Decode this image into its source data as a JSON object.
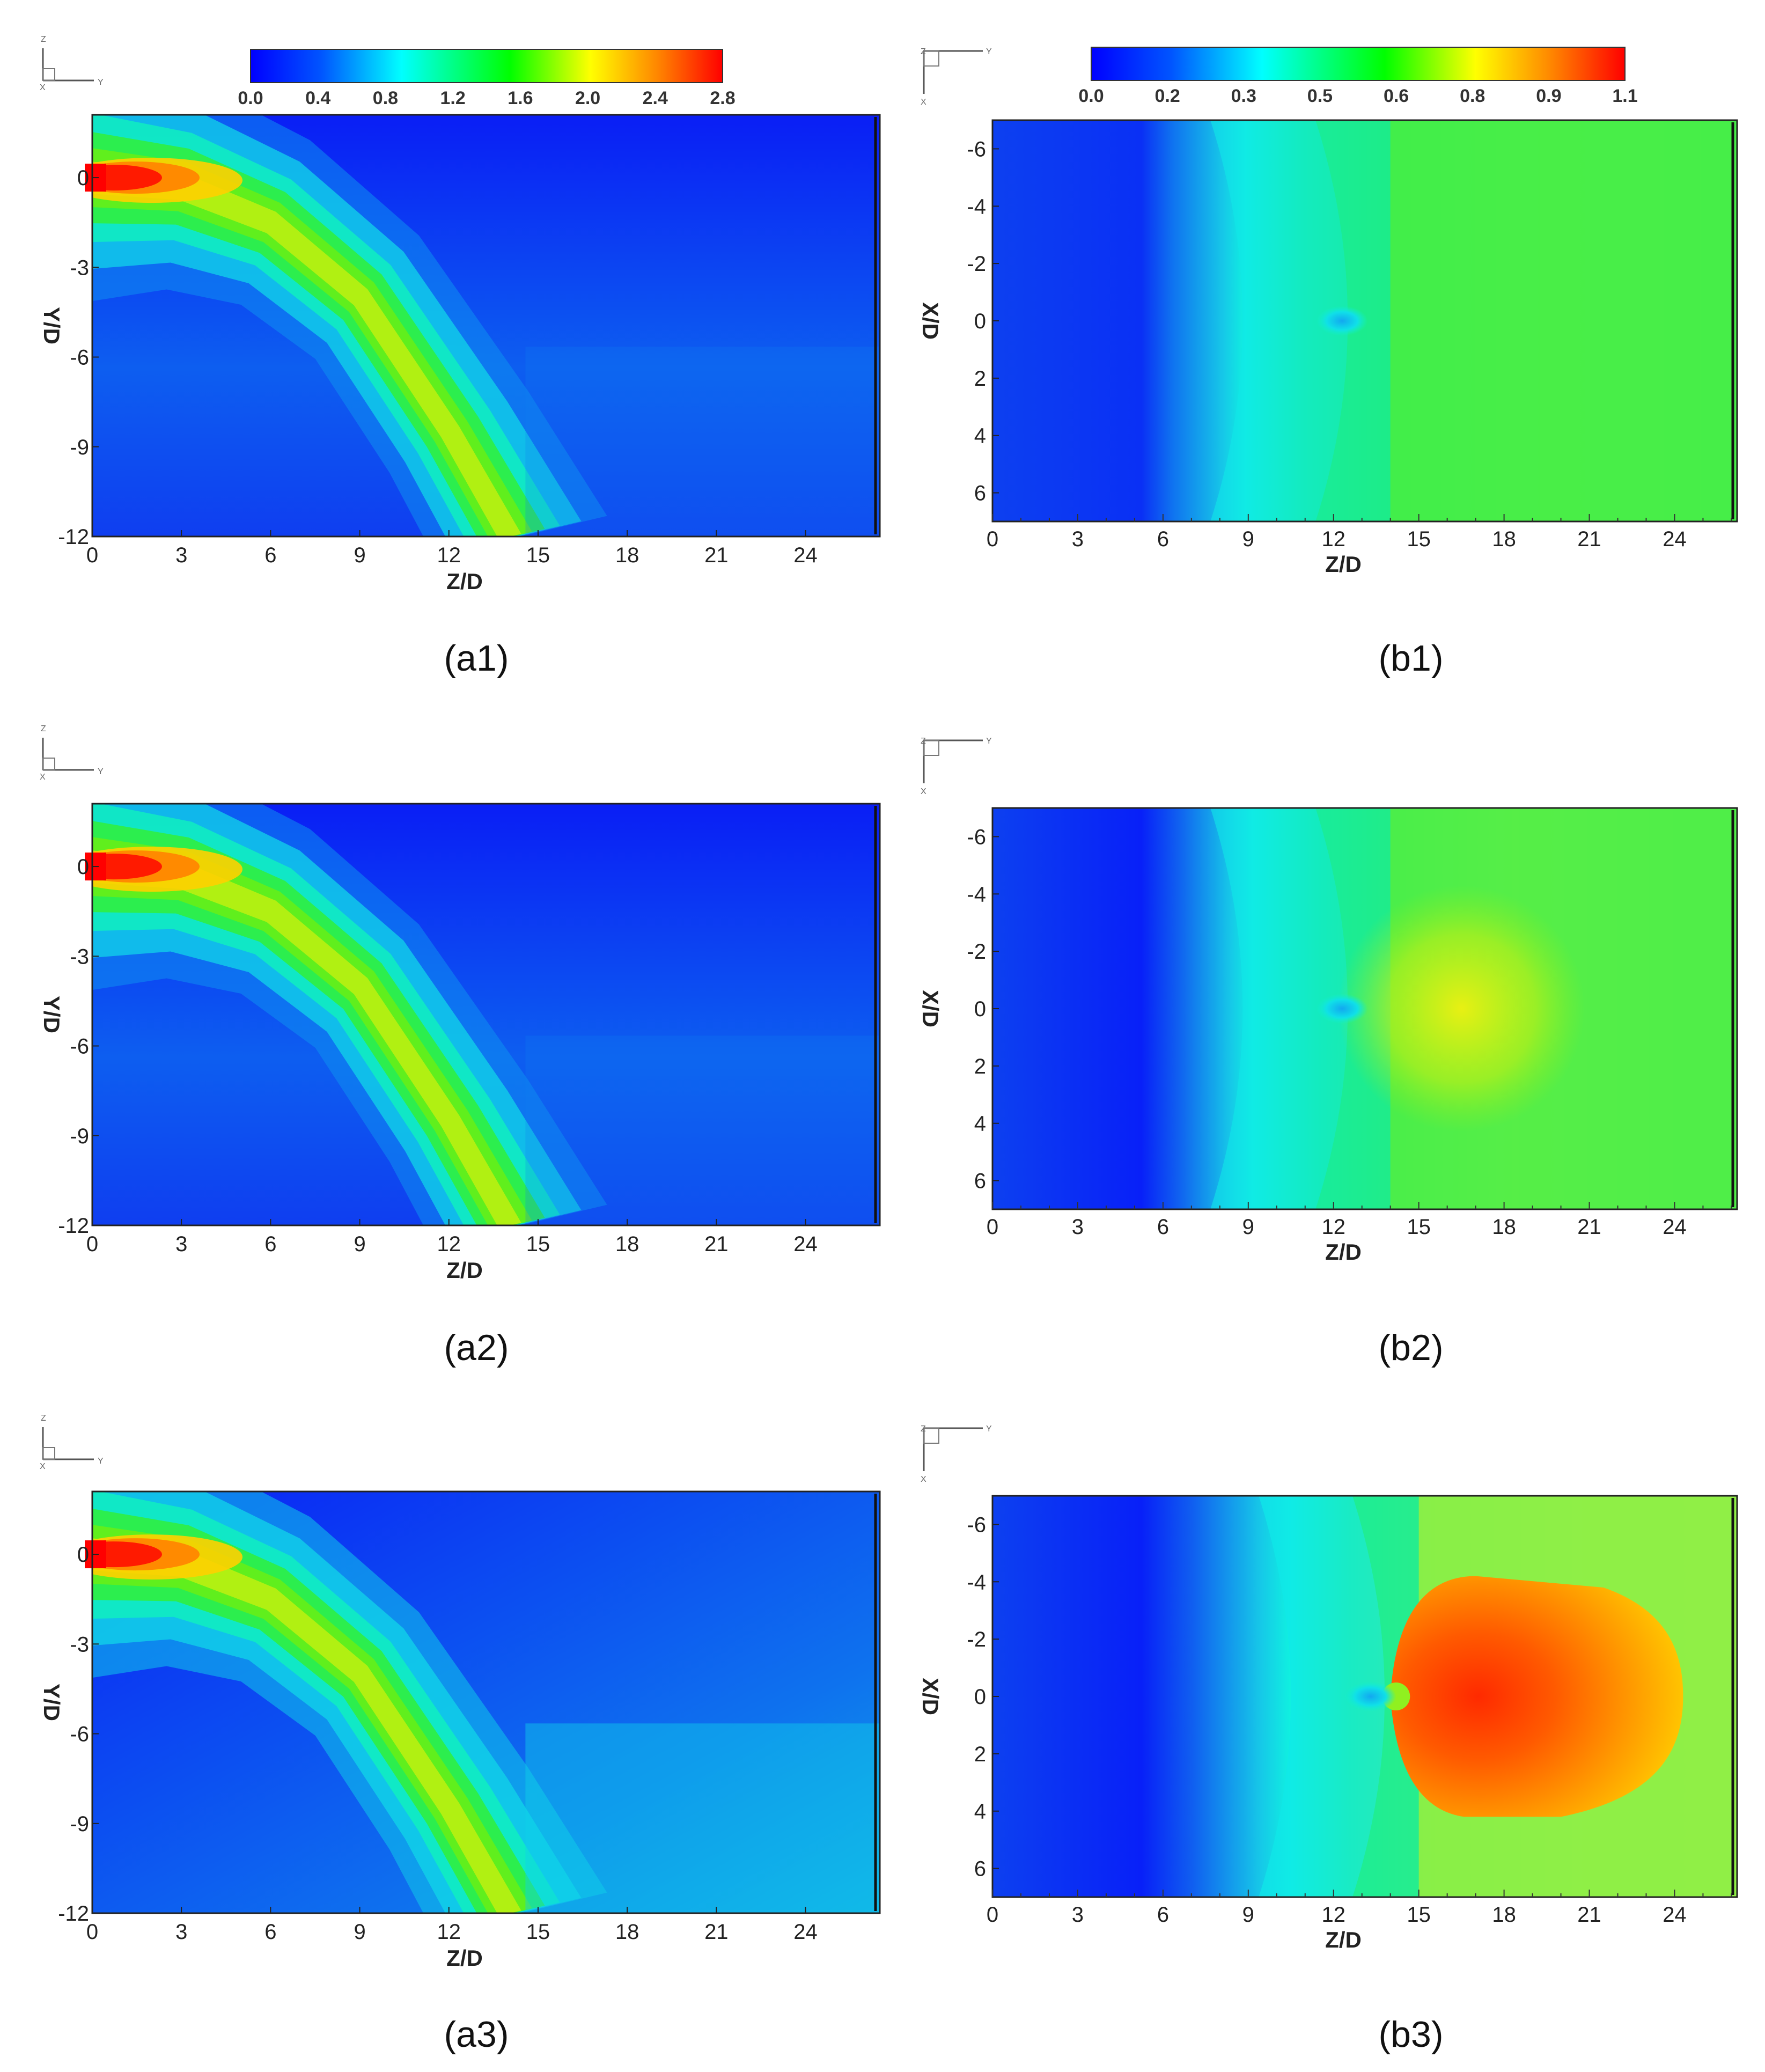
{
  "panels": [
    {
      "id": "a1",
      "caption": "(a1)",
      "type": "heatmap",
      "kind": "A",
      "variant": 1,
      "colorbar": {
        "ticks": [
          "0.0",
          "0.4",
          "0.8",
          "1.2",
          "1.6",
          "2.0",
          "2.4",
          "2.8"
        ],
        "range": [
          0.0,
          2.8
        ]
      },
      "xlabel": "Z/D",
      "ylabel": "Y/D",
      "xticks": [
        "0",
        "3",
        "6",
        "9",
        "12",
        "15",
        "18",
        "21",
        "24"
      ],
      "yticks": [
        "0",
        "-3",
        "-6",
        "-9",
        "-12"
      ],
      "xlim": [
        0,
        26.5
      ],
      "ylim": [
        -12,
        2.1
      ],
      "axis_triad": [
        "Z",
        "Y",
        "X"
      ]
    },
    {
      "id": "b1",
      "caption": "(b1)",
      "type": "heatmap",
      "kind": "B",
      "variant": 1,
      "colorbar": {
        "ticks": [
          "0.0",
          "0.2",
          "0.3",
          "0.5",
          "0.6",
          "0.8",
          "0.9",
          "1.1"
        ],
        "range": [
          0.0,
          1.1
        ]
      },
      "xlabel": "Z/D",
      "ylabel": "X/D",
      "xticks": [
        "0",
        "3",
        "6",
        "9",
        "12",
        "15",
        "18",
        "21",
        "24"
      ],
      "yticks": [
        "-6",
        "-4",
        "-2",
        "0",
        "2",
        "4",
        "6"
      ],
      "xlim": [
        0,
        26.2
      ],
      "ylim": [
        -7,
        7
      ],
      "axis_triad": [
        "Z",
        "Y",
        "X"
      ]
    },
    {
      "id": "a2",
      "caption": "(a2)",
      "type": "heatmap",
      "kind": "A",
      "variant": 2,
      "xlabel": "Z/D",
      "ylabel": "Y/D",
      "xticks": [
        "0",
        "3",
        "6",
        "9",
        "12",
        "15",
        "18",
        "21",
        "24"
      ],
      "yticks": [
        "0",
        "-3",
        "-6",
        "-9",
        "-12"
      ],
      "xlim": [
        0,
        26.5
      ],
      "ylim": [
        -12,
        2.1
      ],
      "axis_triad": [
        "Z",
        "Y",
        "X"
      ]
    },
    {
      "id": "b2",
      "caption": "(b2)",
      "type": "heatmap",
      "kind": "B",
      "variant": 2,
      "xlabel": "Z/D",
      "ylabel": "X/D",
      "xticks": [
        "0",
        "3",
        "6",
        "9",
        "12",
        "15",
        "18",
        "21",
        "24"
      ],
      "yticks": [
        "-6",
        "-4",
        "-2",
        "0",
        "2",
        "4",
        "6"
      ],
      "xlim": [
        0,
        26.2
      ],
      "ylim": [
        -7,
        7
      ],
      "axis_triad": [
        "Z",
        "Y",
        "X"
      ]
    },
    {
      "id": "a3",
      "caption": "(a3)",
      "type": "heatmap",
      "kind": "A",
      "variant": 3,
      "xlabel": "Z/D",
      "ylabel": "Y/D",
      "xticks": [
        "0",
        "3",
        "6",
        "9",
        "12",
        "15",
        "18",
        "21",
        "24"
      ],
      "yticks": [
        "0",
        "-3",
        "-6",
        "-9",
        "-12"
      ],
      "xlim": [
        0,
        26.5
      ],
      "ylim": [
        -12,
        2.1
      ],
      "axis_triad": [
        "Z",
        "Y",
        "X"
      ]
    },
    {
      "id": "b3",
      "caption": "(b3)",
      "type": "heatmap",
      "kind": "B",
      "variant": 3,
      "xlabel": "Z/D",
      "ylabel": "X/D",
      "xticks": [
        "0",
        "3",
        "6",
        "9",
        "12",
        "15",
        "18",
        "21",
        "24"
      ],
      "yticks": [
        "-6",
        "-4",
        "-2",
        "0",
        "2",
        "4",
        "6"
      ],
      "xlim": [
        0,
        26.2
      ],
      "ylim": [
        -7,
        7
      ],
      "axis_triad": [
        "Z",
        "Y",
        "X"
      ]
    }
  ],
  "chart_data": [
    {
      "type": "heatmap",
      "panel": "a1",
      "x_axis": "Z/D",
      "y_axis": "Y/D",
      "xlim": [
        0,
        26.5
      ],
      "ylim": [
        -12,
        2.1
      ],
      "colorscale": [
        "#0000ff",
        "#00ffff",
        "#00ff00",
        "#ffff00",
        "#ff0000"
      ],
      "color_range": [
        0.0,
        2.8
      ],
      "jet_centerline": [
        [
          0,
          0
        ],
        [
          3,
          -0.3
        ],
        [
          6,
          -1.5
        ],
        [
          9,
          -4
        ],
        [
          12,
          -8.5
        ],
        [
          14,
          -12
        ]
      ],
      "peak_value": 2.8
    },
    {
      "type": "heatmap",
      "panel": "b1",
      "x_axis": "Z/D",
      "y_axis": "X/D",
      "xlim": [
        0,
        26.2
      ],
      "ylim": [
        -7,
        7
      ],
      "colorscale": [
        "#0000ff",
        "#00ffff",
        "#00ff00",
        "#ffff00",
        "#ff0000"
      ],
      "color_range": [
        0.0,
        1.1
      ],
      "region_levels": [
        {
          "z": 3,
          "value": 0.1
        },
        {
          "z": 6,
          "value": 0.2
        },
        {
          "z": 9,
          "value": 0.35
        },
        {
          "z": 13,
          "value": 0.45
        },
        {
          "z": 18,
          "value": 0.65
        },
        {
          "z": 24,
          "value": 0.6
        }
      ]
    },
    {
      "type": "heatmap",
      "panel": "a2",
      "x_axis": "Z/D",
      "y_axis": "Y/D",
      "xlim": [
        0,
        26.5
      ],
      "ylim": [
        -12,
        2.1
      ],
      "colorscale": [
        "#0000ff",
        "#00ffff",
        "#00ff00",
        "#ffff00",
        "#ff0000"
      ],
      "color_range": [
        0.0,
        2.8
      ],
      "jet_centerline": [
        [
          0,
          0
        ],
        [
          3,
          -0.3
        ],
        [
          6,
          -1.5
        ],
        [
          9,
          -4
        ],
        [
          12,
          -8.5
        ],
        [
          14,
          -12
        ]
      ],
      "peak_value": 2.8
    },
    {
      "type": "heatmap",
      "panel": "b2",
      "x_axis": "Z/D",
      "y_axis": "X/D",
      "xlim": [
        0,
        26.2
      ],
      "ylim": [
        -7,
        7
      ],
      "colorscale": [
        "#0000ff",
        "#00ffff",
        "#00ff00",
        "#ffff00",
        "#ff0000"
      ],
      "color_range": [
        0.0,
        1.1
      ],
      "region_levels": [
        {
          "z": 3,
          "value": 0.1
        },
        {
          "z": 6,
          "value": 0.15
        },
        {
          "z": 9,
          "value": 0.35
        },
        {
          "z": 13,
          "value": 0.5
        },
        {
          "z": 16,
          "value": 0.75
        },
        {
          "z": 24,
          "value": 0.6
        }
      ]
    },
    {
      "type": "heatmap",
      "panel": "a3",
      "x_axis": "Z/D",
      "y_axis": "Y/D",
      "xlim": [
        0,
        26.5
      ],
      "ylim": [
        -12,
        2.1
      ],
      "colorscale": [
        "#0000ff",
        "#00ffff",
        "#00ff00",
        "#ffff00",
        "#ff0000"
      ],
      "color_range": [
        0.0,
        2.8
      ],
      "jet_centerline": [
        [
          0,
          0
        ],
        [
          3,
          -0.3
        ],
        [
          6,
          -1.5
        ],
        [
          9,
          -4
        ],
        [
          12,
          -8.5
        ],
        [
          14,
          -12
        ]
      ],
      "peak_value": 2.8
    },
    {
      "type": "heatmap",
      "panel": "b3",
      "x_axis": "Z/D",
      "y_axis": "X/D",
      "xlim": [
        0,
        26.2
      ],
      "ylim": [
        -7,
        7
      ],
      "colorscale": [
        "#0000ff",
        "#00ffff",
        "#00ff00",
        "#ffff00",
        "#ff0000"
      ],
      "color_range": [
        0.0,
        1.1
      ],
      "region_levels": [
        {
          "z": 3,
          "value": 0.1
        },
        {
          "z": 6,
          "value": 0.15
        },
        {
          "z": 10,
          "value": 0.35
        },
        {
          "z": 13,
          "value": 0.55
        },
        {
          "z": 16,
          "value": 1.0
        },
        {
          "z": 24,
          "value": 0.8
        }
      ]
    }
  ]
}
